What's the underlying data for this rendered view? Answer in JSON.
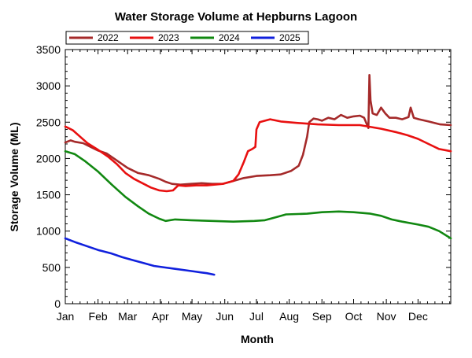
{
  "chart_data": {
    "type": "line",
    "title": "Water Storage Volume at Hepburns Lagoon",
    "xlabel": "Month",
    "ylabel": "Storage Volume (ML)",
    "ylim": [
      0,
      3500
    ],
    "yticks": [
      0,
      500,
      1000,
      1500,
      2000,
      2500,
      3000,
      3500
    ],
    "xlim": [
      1,
      366
    ],
    "month_labels": [
      "Jan",
      "Feb",
      "Mar",
      "Apr",
      "May",
      "Jun",
      "Jul",
      "Aug",
      "Sep",
      "Oct",
      "Nov",
      "Dec"
    ],
    "month_positions": [
      1,
      32,
      60,
      91,
      121,
      152,
      182,
      213,
      244,
      274,
      305,
      335
    ],
    "grid": false,
    "legend_position": "top-left",
    "x_unit": "day of year",
    "series": [
      {
        "name": "2022",
        "color": "#a52a2a",
        "points": [
          [
            1,
            2220
          ],
          [
            6,
            2250
          ],
          [
            10,
            2230
          ],
          [
            18,
            2210
          ],
          [
            25,
            2160
          ],
          [
            32,
            2110
          ],
          [
            40,
            2070
          ],
          [
            50,
            1970
          ],
          [
            60,
            1870
          ],
          [
            70,
            1800
          ],
          [
            80,
            1770
          ],
          [
            90,
            1720
          ],
          [
            96,
            1680
          ],
          [
            102,
            1650
          ],
          [
            110,
            1640
          ],
          [
            120,
            1650
          ],
          [
            130,
            1660
          ],
          [
            140,
            1650
          ],
          [
            150,
            1650
          ],
          [
            160,
            1690
          ],
          [
            170,
            1730
          ],
          [
            182,
            1760
          ],
          [
            195,
            1770
          ],
          [
            205,
            1780
          ],
          [
            215,
            1830
          ],
          [
            222,
            1900
          ],
          [
            226,
            2050
          ],
          [
            230,
            2300
          ],
          [
            232,
            2500
          ],
          [
            236,
            2550
          ],
          [
            240,
            2540
          ],
          [
            244,
            2520
          ],
          [
            250,
            2560
          ],
          [
            256,
            2540
          ],
          [
            262,
            2600
          ],
          [
            268,
            2560
          ],
          [
            274,
            2580
          ],
          [
            280,
            2590
          ],
          [
            284,
            2560
          ],
          [
            288,
            2420
          ],
          [
            289,
            3150
          ],
          [
            290,
            2800
          ],
          [
            292,
            2620
          ],
          [
            296,
            2600
          ],
          [
            300,
            2700
          ],
          [
            304,
            2620
          ],
          [
            308,
            2560
          ],
          [
            314,
            2560
          ],
          [
            320,
            2540
          ],
          [
            326,
            2570
          ],
          [
            328,
            2700
          ],
          [
            331,
            2560
          ],
          [
            336,
            2540
          ],
          [
            345,
            2510
          ],
          [
            356,
            2470
          ],
          [
            366,
            2460
          ]
        ]
      },
      {
        "name": "2023",
        "color": "#e81010",
        "points": [
          [
            1,
            2440
          ],
          [
            8,
            2390
          ],
          [
            15,
            2300
          ],
          [
            22,
            2210
          ],
          [
            32,
            2120
          ],
          [
            42,
            2020
          ],
          [
            50,
            1920
          ],
          [
            58,
            1800
          ],
          [
            66,
            1720
          ],
          [
            74,
            1660
          ],
          [
            82,
            1600
          ],
          [
            90,
            1560
          ],
          [
            97,
            1550
          ],
          [
            103,
            1560
          ],
          [
            108,
            1630
          ],
          [
            115,
            1620
          ],
          [
            125,
            1630
          ],
          [
            135,
            1630
          ],
          [
            150,
            1650
          ],
          [
            160,
            1690
          ],
          [
            165,
            1780
          ],
          [
            170,
            1950
          ],
          [
            174,
            2100
          ],
          [
            178,
            2130
          ],
          [
            181,
            2160
          ],
          [
            182,
            2400
          ],
          [
            185,
            2500
          ],
          [
            195,
            2540
          ],
          [
            205,
            2510
          ],
          [
            220,
            2490
          ],
          [
            240,
            2470
          ],
          [
            260,
            2460
          ],
          [
            280,
            2460
          ],
          [
            300,
            2410
          ],
          [
            315,
            2360
          ],
          [
            325,
            2320
          ],
          [
            335,
            2270
          ],
          [
            345,
            2200
          ],
          [
            355,
            2130
          ],
          [
            366,
            2100
          ]
        ]
      },
      {
        "name": "2024",
        "color": "#118811",
        "points": [
          [
            1,
            2100
          ],
          [
            10,
            2060
          ],
          [
            20,
            1960
          ],
          [
            32,
            1820
          ],
          [
            45,
            1640
          ],
          [
            58,
            1470
          ],
          [
            70,
            1340
          ],
          [
            80,
            1240
          ],
          [
            90,
            1170
          ],
          [
            96,
            1140
          ],
          [
            105,
            1160
          ],
          [
            120,
            1150
          ],
          [
            140,
            1140
          ],
          [
            160,
            1130
          ],
          [
            180,
            1140
          ],
          [
            190,
            1150
          ],
          [
            200,
            1190
          ],
          [
            210,
            1230
          ],
          [
            230,
            1240
          ],
          [
            244,
            1260
          ],
          [
            260,
            1270
          ],
          [
            274,
            1260
          ],
          [
            290,
            1240
          ],
          [
            300,
            1210
          ],
          [
            310,
            1160
          ],
          [
            320,
            1130
          ],
          [
            335,
            1090
          ],
          [
            345,
            1060
          ],
          [
            355,
            1000
          ],
          [
            366,
            900
          ]
        ]
      },
      {
        "name": "2025",
        "color": "#1020dd",
        "points": [
          [
            1,
            900
          ],
          [
            10,
            850
          ],
          [
            20,
            800
          ],
          [
            32,
            740
          ],
          [
            45,
            690
          ],
          [
            55,
            640
          ],
          [
            65,
            600
          ],
          [
            75,
            560
          ],
          [
            85,
            520
          ],
          [
            95,
            500
          ],
          [
            105,
            480
          ],
          [
            115,
            460
          ],
          [
            125,
            440
          ],
          [
            135,
            420
          ],
          [
            142,
            400
          ]
        ]
      }
    ]
  }
}
